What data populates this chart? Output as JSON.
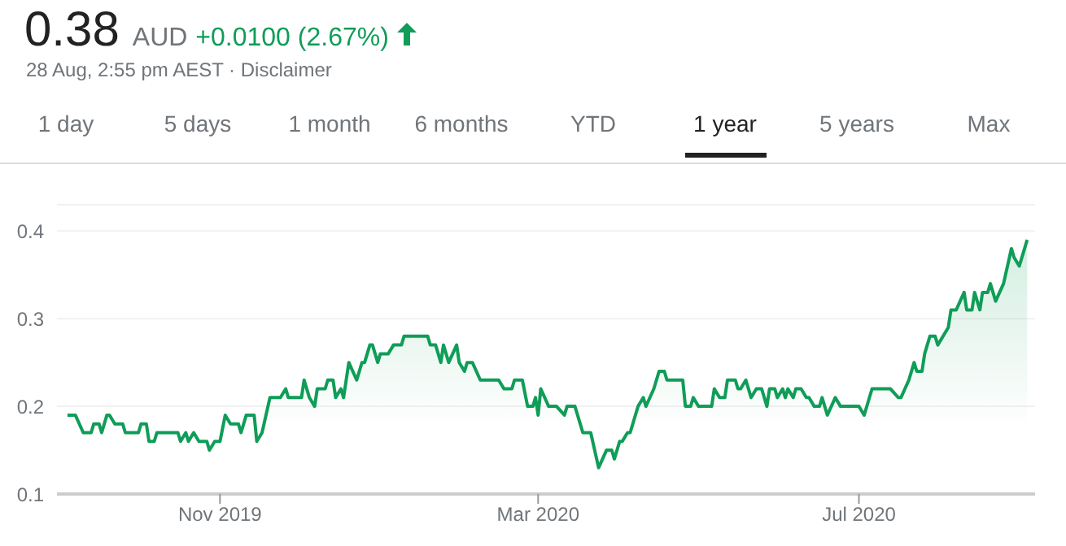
{
  "chart_data": {
    "type": "area",
    "title": "0.38",
    "subtitle": "28 Aug, 2:55 pm AEST · Disclaimer",
    "annotations": [
      "AUD",
      "+0.0100 (2.67%)",
      "1 day",
      "5 days",
      "1 month",
      "6 months",
      "YTD",
      "1 year",
      "5 years",
      "Max"
    ],
    "x": [
      "2019-09-04",
      "2019-09-07",
      "2019-09-10",
      "2019-09-13",
      "2019-09-14",
      "2019-09-16",
      "2019-09-17",
      "2019-09-19",
      "2019-09-20",
      "2019-09-22",
      "2019-09-25",
      "2019-09-26",
      "2019-10-01",
      "2019-10-02",
      "2019-10-04",
      "2019-10-05",
      "2019-10-07",
      "2019-10-08",
      "2019-10-16",
      "2019-10-17",
      "2019-10-19",
      "2019-10-20",
      "2019-10-22",
      "2019-10-24",
      "2019-10-27",
      "2019-10-28",
      "2019-10-30",
      "2019-11-01",
      "2019-11-03",
      "2019-11-05",
      "2019-11-08",
      "2019-11-09",
      "2019-11-11",
      "2019-11-14",
      "2019-11-15",
      "2019-11-17",
      "2019-11-20",
      "2019-11-24",
      "2019-11-26",
      "2019-11-27",
      "2019-12-02",
      "2019-12-03",
      "2019-12-05",
      "2019-12-07",
      "2019-12-08",
      "2019-12-11",
      "2019-12-12",
      "2019-12-14",
      "2019-12-15",
      "2019-12-17",
      "2019-12-18",
      "2019-12-20",
      "2019-12-23",
      "2019-12-25",
      "2019-12-26",
      "2019-12-28",
      "2019-12-29",
      "2019-12-31",
      "2020-01-01",
      "2020-01-04",
      "2020-01-06",
      "2020-01-09",
      "2020-01-10",
      "2020-01-19",
      "2020-01-20",
      "2020-01-22",
      "2020-01-24",
      "2020-01-25",
      "2020-01-27",
      "2020-01-30",
      "2020-01-31",
      "2020-02-02",
      "2020-02-03",
      "2020-02-05",
      "2020-02-08",
      "2020-02-15",
      "2020-02-17",
      "2020-02-20",
      "2020-02-21",
      "2020-02-24",
      "2020-02-26",
      "2020-02-28",
      "2020-02-29",
      "2020-03-01",
      "2020-03-02",
      "2020-03-05",
      "2020-03-08",
      "2020-03-11",
      "2020-03-12",
      "2020-03-15",
      "2020-03-17",
      "2020-03-18",
      "2020-03-21",
      "2020-03-24",
      "2020-03-27",
      "2020-03-29",
      "2020-03-30",
      "2020-04-01",
      "2020-04-02",
      "2020-04-04",
      "2020-04-05",
      "2020-04-08",
      "2020-04-10",
      "2020-04-11",
      "2020-04-14",
      "2020-04-16",
      "2020-04-18",
      "2020-04-19",
      "2020-04-25",
      "2020-04-26",
      "2020-04-28",
      "2020-04-29",
      "2020-05-01",
      "2020-05-06",
      "2020-05-07",
      "2020-05-09",
      "2020-05-11",
      "2020-05-12",
      "2020-05-15",
      "2020-05-16",
      "2020-05-17",
      "2020-05-19",
      "2020-05-21",
      "2020-05-23",
      "2020-05-25",
      "2020-05-27",
      "2020-05-28",
      "2020-05-30",
      "2020-05-31",
      "2020-06-02",
      "2020-06-03",
      "2020-06-04",
      "2020-06-06",
      "2020-06-07",
      "2020-06-09",
      "2020-06-11",
      "2020-06-12",
      "2020-06-14",
      "2020-06-16",
      "2020-06-17",
      "2020-06-19",
      "2020-06-22",
      "2020-06-24",
      "2020-07-01",
      "2020-07-03",
      "2020-07-06",
      "2020-07-13",
      "2020-07-16",
      "2020-07-17",
      "2020-07-20",
      "2020-07-22",
      "2020-07-23",
      "2020-07-25",
      "2020-07-26",
      "2020-07-28",
      "2020-07-30",
      "2020-07-31",
      "2020-08-04",
      "2020-08-05",
      "2020-08-07",
      "2020-08-10",
      "2020-08-11",
      "2020-08-13",
      "2020-08-14",
      "2020-08-16",
      "2020-08-17",
      "2020-08-19",
      "2020-08-20",
      "2020-08-22",
      "2020-08-25",
      "2020-08-28",
      "2020-08-29",
      "2020-08-31",
      "2020-09-03"
    ],
    "series": [
      {
        "color": "#0f9d58",
        "values": [
          0.19,
          0.19,
          0.17,
          0.17,
          0.18,
          0.18,
          0.17,
          0.19,
          0.19,
          0.18,
          0.18,
          0.17,
          0.17,
          0.18,
          0.18,
          0.16,
          0.16,
          0.17,
          0.17,
          0.16,
          0.17,
          0.16,
          0.17,
          0.16,
          0.16,
          0.15,
          0.16,
          0.16,
          0.19,
          0.18,
          0.18,
          0.17,
          0.19,
          0.19,
          0.16,
          0.17,
          0.21,
          0.21,
          0.22,
          0.21,
          0.21,
          0.23,
          0.21,
          0.2,
          0.22,
          0.22,
          0.23,
          0.23,
          0.21,
          0.22,
          0.21,
          0.25,
          0.23,
          0.25,
          0.25,
          0.27,
          0.27,
          0.25,
          0.26,
          0.26,
          0.27,
          0.27,
          0.28,
          0.28,
          0.27,
          0.27,
          0.25,
          0.27,
          0.25,
          0.27,
          0.25,
          0.24,
          0.25,
          0.25,
          0.23,
          0.23,
          0.22,
          0.22,
          0.23,
          0.23,
          0.2,
          0.2,
          0.21,
          0.19,
          0.22,
          0.2,
          0.2,
          0.19,
          0.2,
          0.2,
          0.18,
          0.17,
          0.17,
          0.13,
          0.15,
          0.15,
          0.14,
          0.16,
          0.16,
          0.17,
          0.17,
          0.2,
          0.21,
          0.2,
          0.22,
          0.24,
          0.24,
          0.23,
          0.23,
          0.2,
          0.2,
          0.21,
          0.2,
          0.2,
          0.22,
          0.21,
          0.21,
          0.23,
          0.23,
          0.22,
          0.22,
          0.23,
          0.21,
          0.22,
          0.22,
          0.2,
          0.22,
          0.22,
          0.21,
          0.22,
          0.21,
          0.22,
          0.21,
          0.22,
          0.22,
          0.21,
          0.21,
          0.2,
          0.2,
          0.21,
          0.19,
          0.21,
          0.2,
          0.2,
          0.19,
          0.22,
          0.22,
          0.21,
          0.21,
          0.23,
          0.25,
          0.24,
          0.24,
          0.26,
          0.28,
          0.28,
          0.27,
          0.29,
          0.31,
          0.31,
          0.33,
          0.31,
          0.31,
          0.33,
          0.31,
          0.33,
          0.33,
          0.34,
          0.32,
          0.34,
          0.38,
          0.37,
          0.36,
          0.39
        ]
      }
    ],
    "xlim": [
      "2019-08-31",
      "2020-09-06"
    ],
    "xticks": [
      {
        "value": "2019-11-01",
        "label": "Nov 2019"
      },
      {
        "value": "2020-03-01",
        "label": "Mar 2020"
      },
      {
        "value": "2020-07-01",
        "label": "Jul 2020"
      }
    ],
    "ylim": [
      0.1,
      0.43
    ],
    "yticks": [
      0.1,
      0.2,
      0.3,
      0.4
    ],
    "grid": "y",
    "legend": false
  }
}
